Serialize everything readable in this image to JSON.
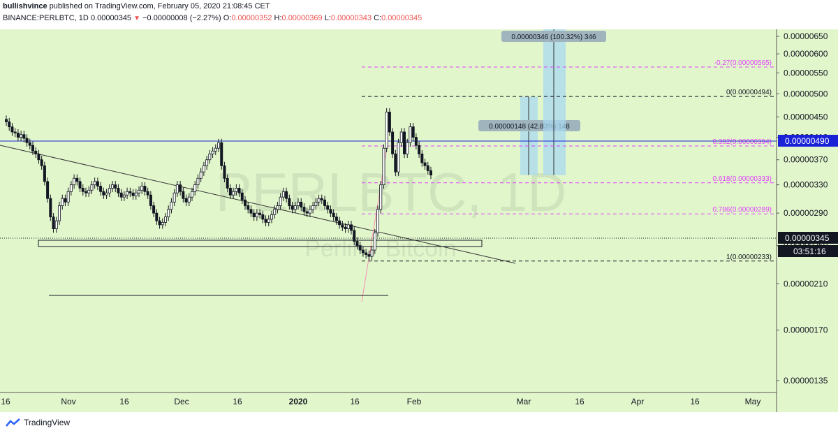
{
  "header": {
    "author": "bullishvince",
    "published_text": "published on TradingView.com, February 05, 2020 21:08:45 CET",
    "symbol": "BINANCE:PERLBTC, 1D",
    "last": "0.00000345",
    "change": "−0.00000008 (−2.27%)",
    "open_label": "O:",
    "open": "0.00000352",
    "high_label": "H:",
    "high": "0.00000369",
    "low_label": "L:",
    "low": "0.00000343",
    "close_label": "C:",
    "close": "0.00000345"
  },
  "watermark": {
    "symbol": "PERLBTC, 1D",
    "name": "Perlin / Bitcoin"
  },
  "colors": {
    "background": "#e2f6cc",
    "up": "#ffffff",
    "down": "#131722",
    "fib": "#e040fb",
    "blue_line": "#1a22d8",
    "measure": "#a8d8f0"
  },
  "chart_data": {
    "type": "candlestick",
    "y_scale": "log",
    "ylim": [
      1.25e-06,
      7e-06
    ],
    "y_ticks": [
      "0.00000650",
      "0.00000600",
      "0.00000550",
      "0.00000500",
      "0.00000450",
      "0.00000410",
      "0.00000370",
      "0.00000330",
      "0.00000290",
      "0.00000250",
      "0.00000210",
      "0.00000170",
      "0.00000135"
    ],
    "x_ticks": [
      "16",
      "Nov",
      "16",
      "Dec",
      "16",
      "2020",
      "16",
      "Feb",
      "Mar",
      "16",
      "Apr",
      "16",
      "May"
    ],
    "price_tags": {
      "resistance": "0.00000490",
      "last": "0.00000345",
      "countdown": "03:51:16"
    },
    "fib_levels": [
      {
        "label": "-0.27(0.00000565)",
        "value": 5.65e-06
      },
      {
        "label": "0(0.00000494)",
        "value": 4.94e-06
      },
      {
        "label": "0.382(0.00000394)",
        "value": 3.94e-06
      },
      {
        "label": "0.618(0.00000333)",
        "value": 3.33e-06
      },
      {
        "label": "0.786(0.00000289)",
        "value": 2.89e-06
      },
      {
        "label": "1(0.00000233)",
        "value": 2.33e-06
      }
    ],
    "measurements": [
      {
        "label": "0.00000148 (42.83%) 148",
        "from": 3.45e-06,
        "to": 4.93e-06
      },
      {
        "label": "0.00000346 (100.32%) 346",
        "from": 3.45e-06,
        "to": 6.91e-06
      }
    ],
    "closes": [
      4.4e-06,
      4.3e-06,
      4.2e-06,
      4.18e-06,
      4.1e-06,
      4.15e-06,
      4.08e-06,
      4e-06,
      3.95e-06,
      3.85e-06,
      3.8e-06,
      3.7e-06,
      3.6e-06,
      3.35e-06,
      3.1e-06,
      2.85e-06,
      2.7e-06,
      2.8e-06,
      3e-06,
      3.1e-06,
      3.05e-06,
      3.2e-06,
      3.3e-06,
      3.4e-06,
      3.35e-06,
      3.25e-06,
      3.2e-06,
      3.18e-06,
      3.22e-06,
      3.3e-06,
      3.35e-06,
      3.28e-06,
      3.2e-06,
      3.15e-06,
      3.18e-06,
      3.25e-06,
      3.3e-06,
      3.25e-06,
      3.18e-06,
      3.12e-06,
      3.15e-06,
      3.2e-06,
      3.18e-06,
      3.14e-06,
      3.18e-06,
      3.22e-06,
      3.28e-06,
      3.2e-06,
      3.15e-06,
      3e-06,
      2.9e-06,
      2.8e-06,
      2.75e-06,
      2.78e-06,
      2.85e-06,
      2.95e-06,
      3.05e-06,
      3.18e-06,
      3.3e-06,
      3.2e-06,
      3.1e-06,
      3.05e-06,
      3.12e-06,
      3.2e-06,
      3.3e-06,
      3.4e-06,
      3.5e-06,
      3.6e-06,
      3.7e-06,
      3.8e-06,
      3.85e-06,
      3.9e-06,
      4e-06,
      3.6e-06,
      3.4e-06,
      3.25e-06,
      3.15e-06,
      3.2e-06,
      3.25e-06,
      3.18e-06,
      3.08e-06,
      3e-06,
      2.95e-06,
      2.9e-06,
      2.85e-06,
      2.9e-06,
      2.88e-06,
      2.82e-06,
      2.78e-06,
      2.82e-06,
      2.88e-06,
      2.95e-06,
      3e-06,
      3.12e-06,
      3.2e-06,
      3.1e-06,
      3e-06,
      2.95e-06,
      3e-06,
      3.05e-06,
      2.98e-06,
      2.92e-06,
      2.9e-06,
      2.95e-06,
      3e-06,
      3.05e-06,
      3.1e-06,
      3.08e-06,
      3e-06,
      2.95e-06,
      2.9e-06,
      2.85e-06,
      2.8e-06,
      2.75e-06,
      2.72e-06,
      2.7e-06,
      2.75e-06,
      2.68e-06,
      2.55e-06,
      2.5e-06,
      2.45e-06,
      2.42e-06,
      2.4e-06,
      2.38e-06,
      2.45e-06,
      2.65e-06,
      2.95e-06,
      3.3e-06,
      3.9e-06,
      4.6e-06,
      4.2e-06,
      3.8e-06,
      3.5e-06,
      4e-06,
      4.2e-06,
      3.8e-06,
      4e-06,
      4.3e-06,
      4.1e-06,
      3.95e-06,
      3.8e-06,
      3.65e-06,
      3.6e-06,
      3.52e-06,
      3.45e-06
    ]
  }
}
